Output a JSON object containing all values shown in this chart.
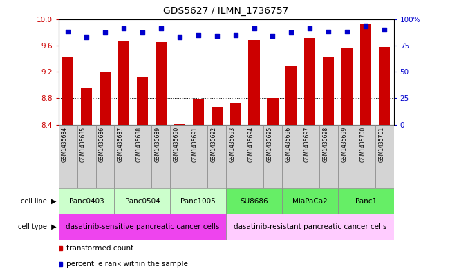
{
  "title": "GDS5627 / ILMN_1736757",
  "samples": [
    "GSM1435684",
    "GSM1435685",
    "GSM1435686",
    "GSM1435687",
    "GSM1435688",
    "GSM1435689",
    "GSM1435690",
    "GSM1435691",
    "GSM1435692",
    "GSM1435693",
    "GSM1435694",
    "GSM1435695",
    "GSM1435696",
    "GSM1435697",
    "GSM1435698",
    "GSM1435699",
    "GSM1435700",
    "GSM1435701"
  ],
  "transformed_count": [
    9.42,
    8.95,
    9.2,
    9.66,
    9.13,
    9.65,
    8.41,
    8.79,
    8.67,
    8.73,
    9.68,
    8.81,
    9.28,
    9.71,
    9.43,
    9.57,
    9.92,
    9.58
  ],
  "percentile_rank": [
    88,
    83,
    87,
    91,
    87,
    91,
    83,
    85,
    84,
    85,
    91,
    84,
    87,
    91,
    88,
    88,
    93,
    90
  ],
  "ylim_left": [
    8.4,
    10.0
  ],
  "ylim_right": [
    0,
    100
  ],
  "yticks_left": [
    8.4,
    8.8,
    9.2,
    9.6,
    10.0
  ],
  "yticks_right": [
    0,
    25,
    50,
    75,
    100
  ],
  "ytick_labels_right": [
    "0",
    "25",
    "50",
    "75",
    "100%"
  ],
  "bar_color": "#cc0000",
  "dot_color": "#0000cc",
  "cell_lines": [
    {
      "name": "Panc0403",
      "start": 0,
      "end": 3,
      "color": "#ccffcc"
    },
    {
      "name": "Panc0504",
      "start": 3,
      "end": 6,
      "color": "#ccffcc"
    },
    {
      "name": "Panc1005",
      "start": 6,
      "end": 9,
      "color": "#ccffcc"
    },
    {
      "name": "SU8686",
      "start": 9,
      "end": 12,
      "color": "#66ee66"
    },
    {
      "name": "MiaPaCa2",
      "start": 12,
      "end": 15,
      "color": "#66ee66"
    },
    {
      "name": "Panc1",
      "start": 15,
      "end": 18,
      "color": "#66ee66"
    }
  ],
  "cell_types": [
    {
      "name": "dasatinib-sensitive pancreatic cancer cells",
      "start": 0,
      "end": 9,
      "color": "#ee44ee"
    },
    {
      "name": "dasatinib-resistant pancreatic cancer cells",
      "start": 9,
      "end": 18,
      "color": "#ffccff"
    }
  ],
  "legend_bar_label": "transformed count",
  "legend_dot_label": "percentile rank within the sample",
  "grid_yticks": [
    8.4,
    8.8,
    9.2,
    9.6
  ],
  "label_bg_color": "#d4d4d4",
  "title_fontsize": 10,
  "tick_fontsize": 7.5,
  "bar_label_fontsize": 5.5,
  "cell_fontsize": 7.5,
  "legend_fontsize": 7.5
}
